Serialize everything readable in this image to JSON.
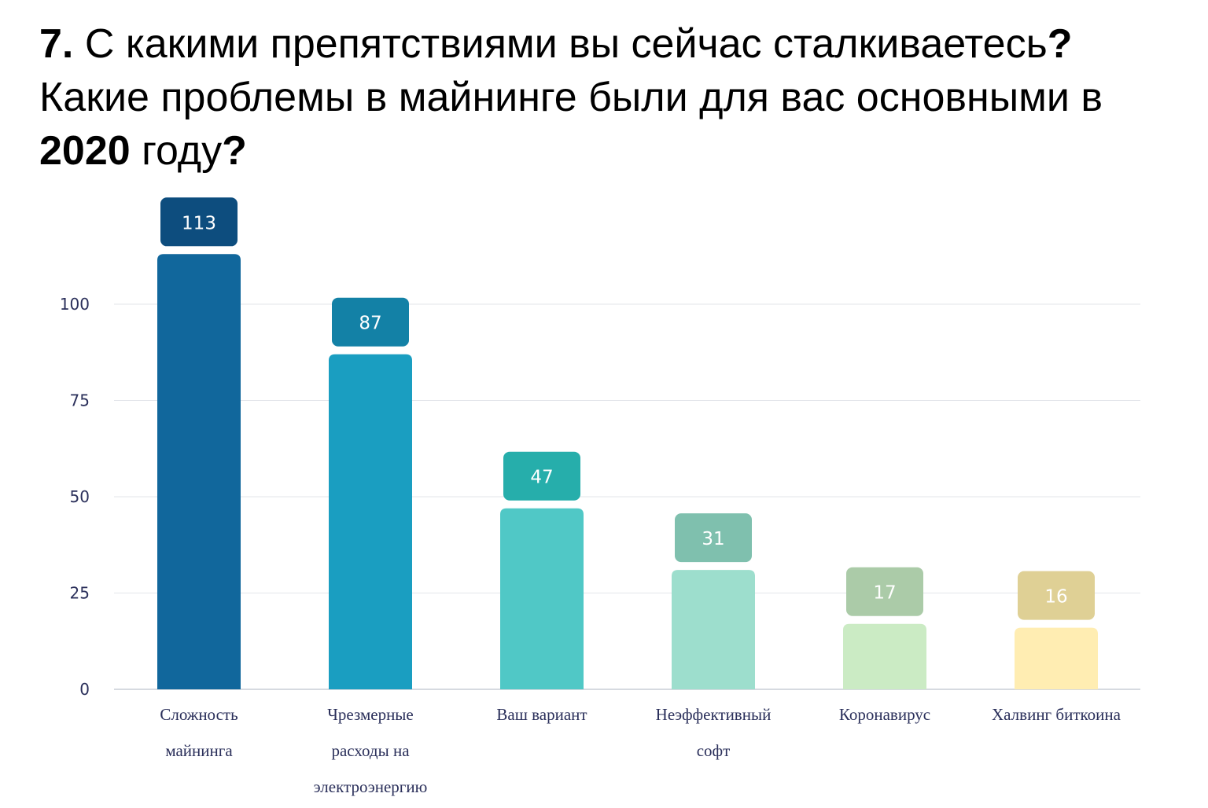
{
  "title": {
    "number": "7.",
    "part1": " С какими препятствиями вы сейчас сталкиваетесь",
    "q1": "?",
    "part2": " Какие проблемы в майнинге были для вас основными в ",
    "year": "2020",
    "part3": " году",
    "q2": "?"
  },
  "chart_data": {
    "type": "bar",
    "categories": [
      [
        "Сложность",
        "майнинга"
      ],
      [
        "Чрезмерные",
        "расходы на",
        "электроэнергию"
      ],
      [
        "Ваш вариант"
      ],
      [
        "Неэффективный",
        "софт"
      ],
      [
        "Коронавирус"
      ],
      [
        "Халвинг биткоина"
      ]
    ],
    "values": [
      113,
      87,
      47,
      31,
      17,
      16
    ],
    "bar_colors": [
      "#11679c",
      "#1a9ec1",
      "#50c8c6",
      "#9ddecd",
      "#cbebc4",
      "#ffedb2"
    ],
    "label_colors": [
      "#0d4d7e",
      "#1381a6",
      "#26aeab",
      "#7fc0ae",
      "#abcba8",
      "#dfd095"
    ],
    "yticks": [
      0,
      25,
      50,
      75,
      100
    ],
    "ylim": [
      0,
      113
    ],
    "grid": true
  }
}
